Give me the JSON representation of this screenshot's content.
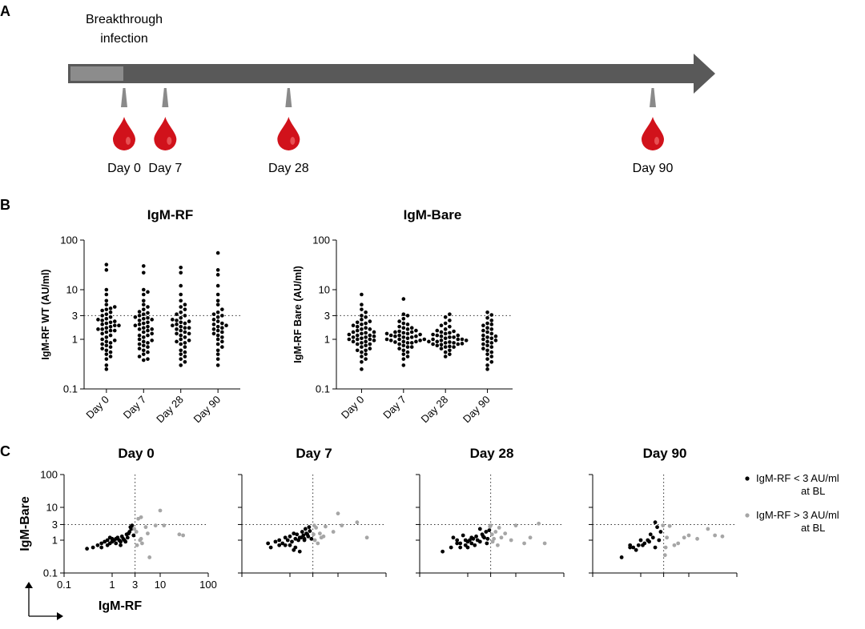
{
  "panel_labels": {
    "a": "A",
    "b": "B",
    "c": "C"
  },
  "colors": {
    "bar": "#595959",
    "bar_segment": "#8c8c8c",
    "drop": "#d1121b",
    "marker": "#8a8a8a",
    "black_point": "#000000",
    "grey_point": "#a6a6a6",
    "axis": "#000000"
  },
  "timeline": {
    "event_line1": "Breakthrough",
    "event_line2": "infection",
    "markers": [
      {
        "day": 0,
        "label": "Day 0"
      },
      {
        "day": 7,
        "label": "Day 7"
      },
      {
        "day": 28,
        "label": "Day 28"
      },
      {
        "day": 90,
        "label": "Day 90"
      }
    ],
    "drop_icon": "blood-drop-icon",
    "marker_icon": "triangle-marker-icon"
  },
  "chart_data": [
    {
      "id": "B1",
      "type": "scatter",
      "title": "IgM-RF",
      "xlabel": "",
      "ylabel": "IgM-RF WT (AU/ml)",
      "yscale": "log",
      "ylim": [
        0.1,
        100
      ],
      "yticks": [
        0.1,
        1,
        3,
        10,
        100
      ],
      "ytick_labels": [
        "0.1",
        "1",
        "3",
        "10",
        "100"
      ],
      "threshold": 3,
      "categories": [
        "Day 0",
        "Day 7",
        "Day 28",
        "Day 90"
      ],
      "series": [
        {
          "name": "Day 0",
          "values": [
            32,
            25,
            10,
            8,
            6,
            5,
            4.5,
            4,
            3.5,
            3.2,
            3,
            2.8,
            2.6,
            2.5,
            2.4,
            2.2,
            2.1,
            2,
            1.9,
            1.8,
            1.7,
            1.6,
            1.5,
            1.5,
            1.4,
            1.3,
            1.2,
            1.1,
            1,
            0.95,
            0.9,
            0.85,
            0.8,
            0.75,
            0.7,
            0.65,
            0.6,
            0.55,
            0.5,
            0.45,
            0.4,
            0.3,
            0.25,
            2.3,
            1.9,
            3.8,
            4.2,
            1.6
          ]
        },
        {
          "name": "Day 7",
          "values": [
            30,
            22,
            10,
            9,
            8,
            6,
            5,
            4.5,
            4,
            3.6,
            3.2,
            3,
            2.8,
            2.6,
            2.5,
            2.4,
            2.2,
            2,
            1.9,
            1.8,
            1.7,
            1.6,
            1.5,
            1.4,
            1.3,
            1.2,
            1.1,
            1,
            0.95,
            0.9,
            0.85,
            0.8,
            0.7,
            0.65,
            0.6,
            0.55,
            0.5,
            0.45,
            0.4,
            0.38,
            2.1,
            1.6,
            3.4,
            2.7,
            1.2,
            0.75
          ]
        },
        {
          "name": "Day 28",
          "values": [
            28,
            22,
            12,
            8,
            6,
            5,
            4.5,
            4,
            3.5,
            3.2,
            3,
            2.7,
            2.5,
            2.3,
            2.2,
            2,
            1.9,
            1.8,
            1.7,
            1.6,
            1.5,
            1.4,
            1.3,
            1.2,
            1.1,
            1,
            0.95,
            0.9,
            0.85,
            0.8,
            0.7,
            0.6,
            0.55,
            0.5,
            0.45,
            0.4,
            0.35,
            0.3,
            2.4,
            1.7,
            2.1,
            1.3
          ]
        },
        {
          "name": "Day 90",
          "values": [
            55,
            25,
            20,
            12,
            8,
            6,
            5,
            4,
            3.5,
            3.2,
            3,
            2.8,
            2.5,
            2.3,
            2.1,
            2,
            1.9,
            1.8,
            1.7,
            1.6,
            1.5,
            1.4,
            1.3,
            1.2,
            1.1,
            1,
            0.9,
            0.8,
            0.7,
            0.6,
            0.5,
            0.4,
            0.3
          ]
        }
      ]
    },
    {
      "id": "B2",
      "type": "scatter",
      "title": "IgM-Bare",
      "xlabel": "",
      "ylabel": "IgM-RF Bare (AU/ml)",
      "yscale": "log",
      "ylim": [
        0.1,
        100
      ],
      "yticks": [
        0.1,
        1,
        3,
        10,
        100
      ],
      "ytick_labels": [
        "0.1",
        "1",
        "3",
        "10",
        "100"
      ],
      "threshold": 3,
      "categories": [
        "Day 0",
        "Day 7",
        "Day 28",
        "Day 90"
      ],
      "series": [
        {
          "name": "Day 0",
          "values": [
            8,
            5,
            4,
            3.5,
            3,
            2.8,
            2.5,
            2.3,
            2.1,
            2,
            1.9,
            1.8,
            1.7,
            1.6,
            1.5,
            1.4,
            1.35,
            1.3,
            1.25,
            1.2,
            1.15,
            1.1,
            1.05,
            1,
            1,
            0.95,
            0.9,
            0.85,
            0.8,
            0.75,
            0.7,
            0.65,
            0.6,
            0.55,
            0.5,
            0.45,
            0.4,
            0.35,
            0.25,
            1.2,
            0.9,
            1.4,
            1.1,
            0.8,
            1.6,
            2.2,
            0.6,
            1.0
          ]
        },
        {
          "name": "Day 7",
          "values": [
            6.5,
            3.2,
            3,
            2.6,
            2.3,
            2.1,
            2,
            1.8,
            1.7,
            1.6,
            1.5,
            1.45,
            1.4,
            1.35,
            1.3,
            1.25,
            1.2,
            1.15,
            1.1,
            1.05,
            1,
            1,
            0.95,
            0.9,
            0.88,
            0.85,
            0.8,
            0.75,
            0.7,
            0.65,
            0.6,
            0.55,
            0.5,
            0.45,
            0.4,
            0.3,
            1.2,
            0.95,
            1.3,
            1.1,
            0.85,
            1.7,
            1.0,
            0.7,
            1.15,
            1.4,
            0.9
          ]
        },
        {
          "name": "Day 28",
          "values": [
            3.2,
            2.8,
            2.4,
            2.1,
            1.9,
            1.8,
            1.6,
            1.5,
            1.45,
            1.4,
            1.3,
            1.25,
            1.2,
            1.15,
            1.1,
            1.05,
            1,
            1,
            0.95,
            0.9,
            0.88,
            0.85,
            0.82,
            0.8,
            0.78,
            0.75,
            0.72,
            0.7,
            0.65,
            0.6,
            0.55,
            0.5,
            0.45,
            1.2,
            0.9,
            1.1,
            0.8,
            0.95,
            1.35,
            0.7,
            1.0,
            0.85
          ]
        },
        {
          "name": "Day 90",
          "values": [
            3.5,
            3.1,
            2.7,
            2.4,
            2.1,
            1.9,
            1.7,
            1.5,
            1.4,
            1.3,
            1.2,
            1.1,
            1.05,
            1,
            0.95,
            0.9,
            0.85,
            0.8,
            0.7,
            0.65,
            0.6,
            0.5,
            0.45,
            0.4,
            0.35,
            0.3,
            0.25,
            1.15,
            0.75,
            1.6,
            2.0,
            0.55
          ]
        }
      ]
    },
    {
      "id": "C1",
      "type": "scatter",
      "title": "Day 0",
      "xlabel": "IgM-RF",
      "ylabel": "IgM-Bare",
      "xscale": "log",
      "yscale": "log",
      "xlim": [
        0.1,
        100
      ],
      "ylim": [
        0.1,
        100
      ],
      "xticks": [
        0.1,
        1,
        3,
        10,
        100
      ],
      "xtick_labels": [
        "0.1",
        "1",
        "3",
        "10",
        "100"
      ],
      "yticks": [
        0.1,
        1,
        3,
        10,
        100
      ],
      "ytick_labels": [
        "0.1",
        "1",
        "3",
        "10",
        "100"
      ],
      "threshold_x": 3,
      "threshold_y": 3,
      "series": [
        {
          "name": "IgM-RF < 3 AU/ml at BL",
          "x": [
            0.3,
            0.4,
            0.5,
            0.6,
            0.6,
            0.7,
            0.8,
            0.8,
            0.9,
            1.0,
            1.0,
            1.1,
            1.2,
            1.3,
            1.4,
            1.5,
            1.6,
            1.7,
            1.8,
            2.0,
            2.1,
            2.3,
            2.5,
            2.6,
            2.8,
            1.5,
            1.9,
            2.2,
            1.2,
            0.9,
            2.4
          ],
          "y": [
            0.55,
            0.6,
            0.7,
            0.8,
            0.6,
            0.9,
            0.7,
            1.0,
            0.8,
            0.9,
            1.1,
            1.0,
            0.8,
            1.2,
            1.0,
            0.9,
            1.3,
            1.1,
            1.0,
            1.5,
            1.2,
            1.8,
            2.2,
            2.8,
            1.4,
            0.7,
            0.9,
            1.6,
            1.1,
            1.2,
            2.5
          ]
        },
        {
          "name": "IgM-R F > 3 AU/ml at BL",
          "x": [
            3.5,
            4,
            5,
            3.2,
            4.2,
            6,
            8,
            10,
            12,
            25,
            30,
            4,
            5.5,
            3.8,
            3.3,
            2.9
          ],
          "y": [
            4.5,
            5,
            2.5,
            1.8,
            0.8,
            0.3,
            2.8,
            8,
            2.8,
            1.5,
            1.4,
            1.1,
            1.6,
            1.0,
            0.7,
            2.2
          ]
        }
      ]
    },
    {
      "id": "C2",
      "type": "scatter",
      "title": "Day 7",
      "xlabel": "",
      "ylabel": "",
      "xscale": "log",
      "yscale": "log",
      "xlim": [
        0.1,
        100
      ],
      "ylim": [
        0.1,
        100
      ],
      "threshold_x": 3,
      "threshold_y": 3,
      "series": [
        {
          "name": "IgM-RF < 3 AU/ml at BL",
          "x": [
            0.35,
            0.4,
            0.5,
            0.6,
            0.7,
            0.8,
            0.9,
            1.0,
            1.1,
            1.2,
            1.3,
            1.4,
            1.5,
            1.6,
            1.7,
            1.8,
            1.9,
            2.0,
            2.1,
            2.2,
            2.4,
            2.5,
            2.6,
            2.8,
            1.0,
            1.3,
            0.8,
            1.6,
            2.0,
            2.3,
            1.2,
            0.6
          ],
          "y": [
            0.8,
            0.6,
            0.9,
            1.0,
            0.8,
            1.2,
            1.0,
            1.3,
            0.9,
            0.5,
            1.1,
            1.5,
            1.0,
            0.45,
            1.2,
            1.8,
            1.4,
            1.0,
            2.2,
            1.6,
            1.3,
            2.5,
            1.9,
            1.1,
            0.7,
            0.6,
            0.7,
            1.2,
            1.1,
            1.5,
            1.6,
            0.7
          ]
        },
        {
          "name": "IgM-R F > 3 AU/ml at BL",
          "x": [
            3.2,
            3.5,
            4.5,
            5,
            8,
            10,
            12,
            25,
            40,
            3.3,
            3.8,
            3.1,
            5.5,
            4.2
          ],
          "y": [
            2.8,
            2.4,
            1.2,
            1.3,
            1.8,
            6.5,
            2.8,
            3.5,
            1.2,
            1.0,
            0.8,
            1.5,
            2.6,
            1.6
          ]
        }
      ]
    },
    {
      "id": "C3",
      "type": "scatter",
      "title": "Day 28",
      "xlabel": "",
      "ylabel": "",
      "xscale": "log",
      "yscale": "log",
      "xlim": [
        0.1,
        100
      ],
      "ylim": [
        0.1,
        100
      ],
      "threshold_x": 3,
      "threshold_y": 3,
      "series": [
        {
          "name": "IgM-RF < 3 AU/ml at BL",
          "x": [
            0.3,
            0.45,
            0.5,
            0.6,
            0.7,
            0.8,
            0.9,
            1.0,
            1.1,
            1.2,
            1.3,
            1.5,
            1.6,
            1.8,
            2.0,
            2.2,
            2.4,
            2.6,
            2.8,
            0.7,
            0.9,
            1.4,
            2.1,
            1.2,
            1.8,
            2.5,
            0.6,
            1.0
          ],
          "y": [
            0.45,
            0.6,
            1.2,
            1.0,
            0.8,
            1.4,
            0.7,
            0.9,
            1.0,
            0.8,
            1.1,
            1.3,
            1.0,
            0.9,
            1.5,
            1.2,
            1.8,
            1.1,
            2.0,
            0.6,
            1.0,
            0.7,
            1.3,
            1.2,
            2.2,
            0.8,
            0.8,
            0.6
          ]
        },
        {
          "name": "IgM-R F > 3 AU/ml at BL",
          "x": [
            3.0,
            3.2,
            3.5,
            4.5,
            5,
            8,
            10,
            15,
            20,
            30,
            40,
            3.8,
            4.2,
            6,
            3.3,
            2.9
          ],
          "y": [
            2.8,
            1.5,
            1.1,
            2.4,
            1.2,
            1.0,
            2.8,
            0.8,
            1.2,
            3.2,
            0.8,
            1.8,
            0.7,
            1.6,
            0.9,
            2.6
          ]
        }
      ]
    },
    {
      "id": "C4",
      "type": "scatter",
      "title": "Day 90",
      "xlabel": "",
      "ylabel": "",
      "xscale": "log",
      "yscale": "log",
      "xlim": [
        0.1,
        100
      ],
      "ylim": [
        0.1,
        100
      ],
      "threshold_x": 3,
      "threshold_y": 3,
      "series": [
        {
          "name": "IgM-RF < 3 AU/ml at BL",
          "x": [
            0.4,
            0.6,
            0.7,
            0.8,
            0.9,
            1.0,
            1.1,
            1.2,
            1.4,
            1.6,
            1.8,
            2.0,
            2.2,
            2.4,
            2.6,
            1.5,
            2.0,
            0.6
          ],
          "y": [
            0.3,
            0.6,
            0.6,
            0.5,
            0.7,
            1.0,
            0.7,
            0.8,
            1.0,
            1.5,
            1.2,
            3.5,
            2.5,
            1.0,
            1.8,
            0.9,
            0.6,
            0.7
          ]
        },
        {
          "name": "IgM-R F > 3 AU/ml at BL",
          "x": [
            2.9,
            3.2,
            3.5,
            4,
            5,
            6,
            8,
            10,
            15,
            25,
            35,
            50,
            3.3
          ],
          "y": [
            2.8,
            0.35,
            1.2,
            2.7,
            0.7,
            0.8,
            1.2,
            1.4,
            1.1,
            2.2,
            1.4,
            1.3,
            0.6
          ]
        }
      ]
    }
  ],
  "legend": {
    "items": [
      {
        "line1": "IgM-RF < 3 AU/ml",
        "line2": "at BL",
        "color": "#000000"
      },
      {
        "line1": "IgM-RF > 3 AU/ml",
        "line2": "at BL",
        "color": "#a6a6a6"
      }
    ]
  }
}
